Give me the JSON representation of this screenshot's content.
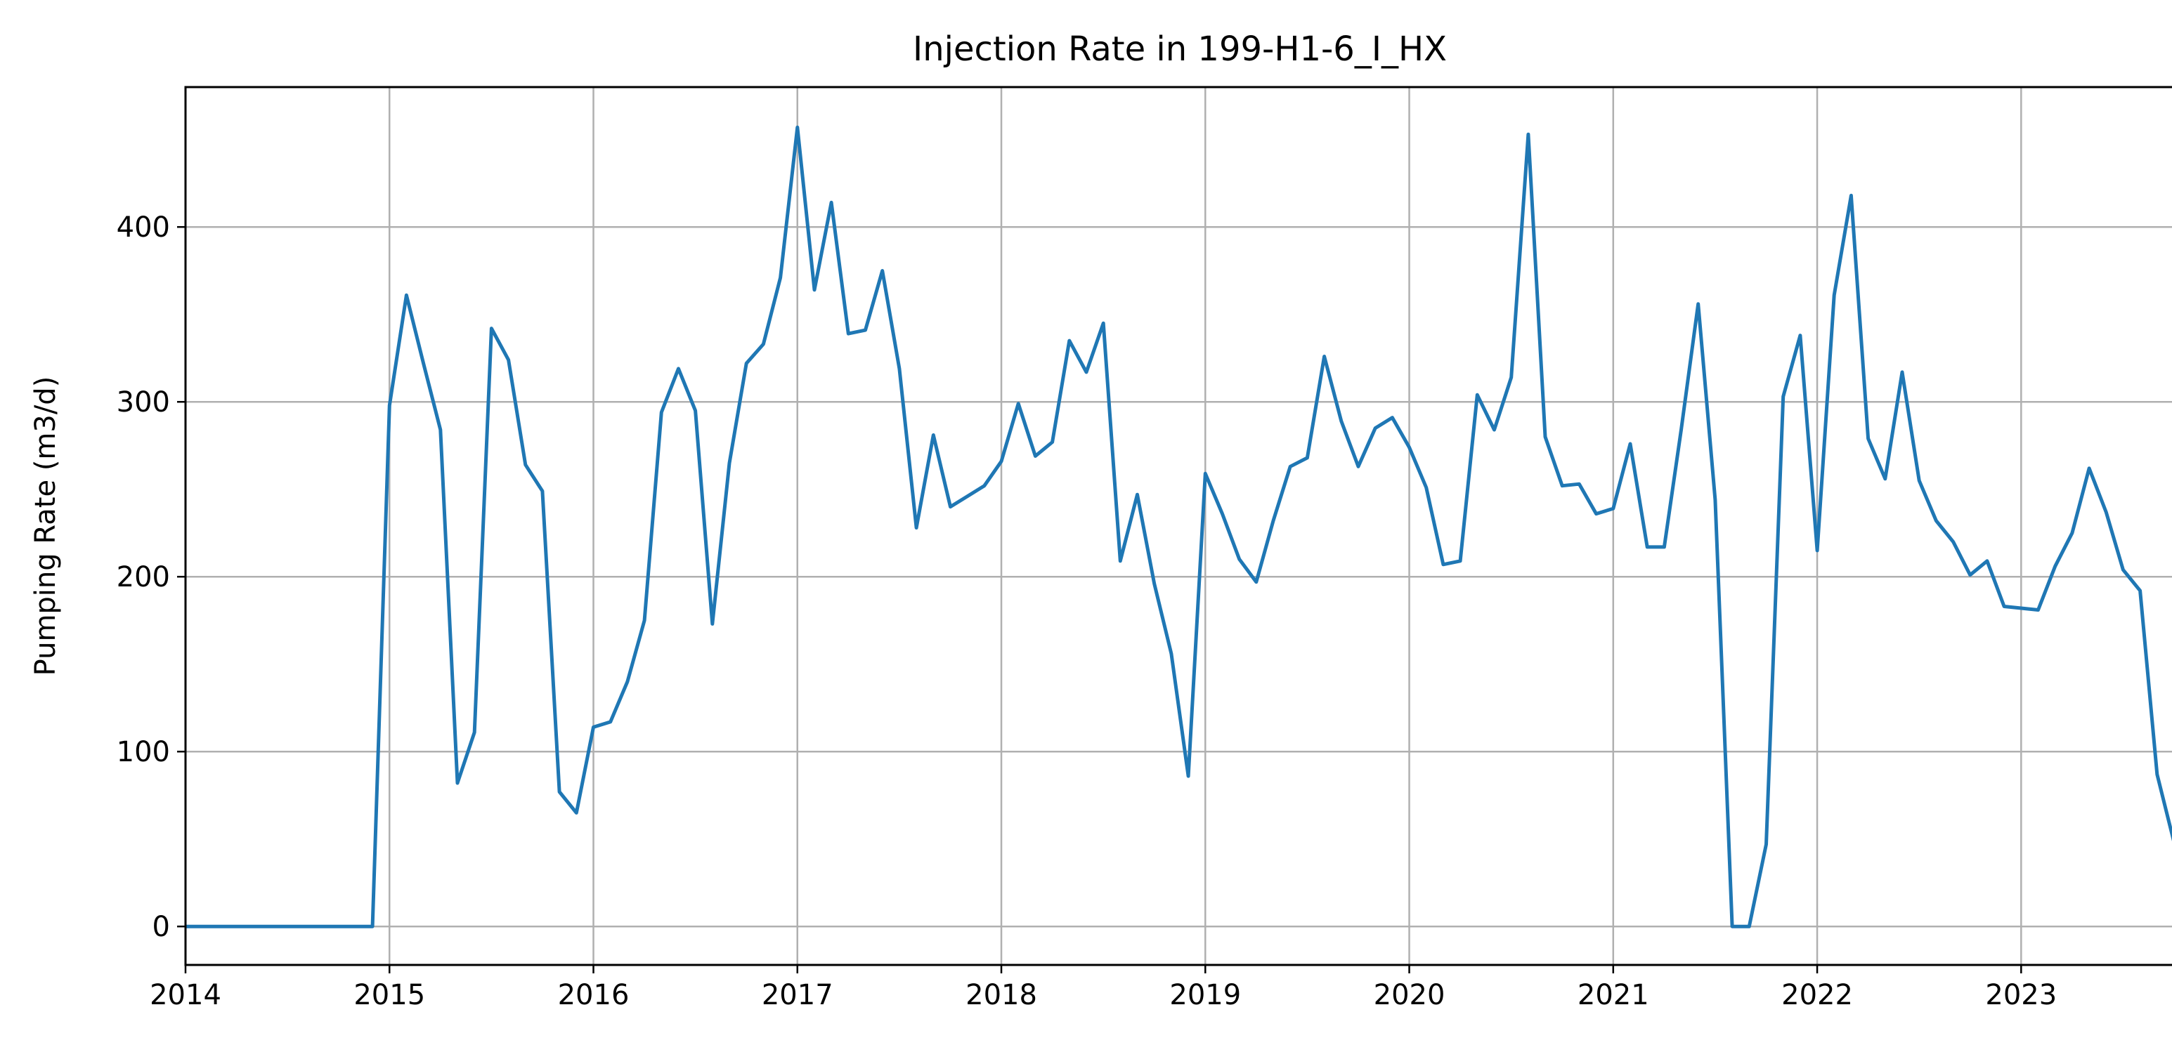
{
  "chart_data": {
    "type": "line",
    "title": "Injection Rate in 199-H1-6_I_HX",
    "xlabel": "",
    "ylabel": "Pumping Rate (m3/d)",
    "xlim": [
      "2014-01",
      "2023-10"
    ],
    "ylim": [
      -22,
      480
    ],
    "grid": true,
    "x_ticks": [
      "2014",
      "2015",
      "2016",
      "2017",
      "2018",
      "2019",
      "2020",
      "2021",
      "2022",
      "2023"
    ],
    "y_ticks": [
      0,
      100,
      200,
      300,
      400
    ],
    "series": [
      {
        "color": "#1f77b4",
        "x": [
          "2014-01",
          "2014-02",
          "2014-03",
          "2014-04",
          "2014-05",
          "2014-06",
          "2014-07",
          "2014-08",
          "2014-09",
          "2014-10",
          "2014-11",
          "2014-12",
          "2015-01",
          "2015-02",
          "2015-03",
          "2015-04",
          "2015-05",
          "2015-06",
          "2015-07",
          "2015-08",
          "2015-09",
          "2015-10",
          "2015-11",
          "2015-12",
          "2016-01",
          "2016-02",
          "2016-03",
          "2016-04",
          "2016-05",
          "2016-06",
          "2016-07",
          "2016-08",
          "2016-09",
          "2016-10",
          "2016-11",
          "2016-12",
          "2017-01",
          "2017-02",
          "2017-03",
          "2017-04",
          "2017-05",
          "2017-06",
          "2017-07",
          "2017-08",
          "2017-09",
          "2017-10",
          "2017-11",
          "2017-12",
          "2018-01",
          "2018-02",
          "2018-03",
          "2018-04",
          "2018-05",
          "2018-06",
          "2018-07",
          "2018-08",
          "2018-09",
          "2018-10",
          "2018-11",
          "2018-12",
          "2019-01",
          "2019-02",
          "2019-03",
          "2019-04",
          "2019-05",
          "2019-06",
          "2019-07",
          "2019-08",
          "2019-09",
          "2019-10",
          "2019-11",
          "2019-12",
          "2020-01",
          "2020-02",
          "2020-03",
          "2020-04",
          "2020-05",
          "2020-06",
          "2020-07",
          "2020-08",
          "2020-09",
          "2020-10",
          "2020-11",
          "2020-12",
          "2021-01",
          "2021-02",
          "2021-03",
          "2021-04",
          "2021-05",
          "2021-06",
          "2021-07",
          "2021-08",
          "2021-09",
          "2021-10",
          "2021-11",
          "2021-12",
          "2022-01",
          "2022-02",
          "2022-03",
          "2022-04",
          "2022-05",
          "2022-06",
          "2022-07",
          "2022-08",
          "2022-09",
          "2022-10",
          "2022-11",
          "2022-12",
          "2023-01",
          "2023-02",
          "2023-03",
          "2023-04",
          "2023-05",
          "2023-06",
          "2023-07",
          "2023-08",
          "2023-09",
          "2023-10"
        ],
        "values": [
          0,
          0,
          0,
          0,
          0,
          0,
          0,
          0,
          0,
          0,
          0,
          0,
          298,
          361,
          322,
          284,
          82,
          111,
          342,
          324,
          264,
          249,
          77,
          65,
          114,
          117,
          140,
          175,
          294,
          319,
          295,
          173,
          265,
          322,
          333,
          371,
          457,
          364,
          414,
          339,
          341,
          375,
          319,
          228,
          281,
          240,
          246,
          252,
          266,
          299,
          269,
          277,
          335,
          317,
          345,
          209,
          247,
          196,
          156,
          86,
          259,
          236,
          210,
          197,
          232,
          263,
          268,
          326,
          289,
          263,
          285,
          291,
          274,
          251,
          207,
          209,
          304,
          284,
          314,
          453,
          280,
          252,
          253,
          236,
          239,
          276,
          217,
          217,
          284,
          356,
          244,
          0,
          0,
          47,
          303,
          338,
          215,
          361,
          418,
          279,
          256,
          317,
          255,
          232,
          220,
          201,
          209,
          183,
          182,
          181,
          206,
          225,
          262,
          237,
          204,
          192,
          87,
          48
        ]
      }
    ]
  }
}
